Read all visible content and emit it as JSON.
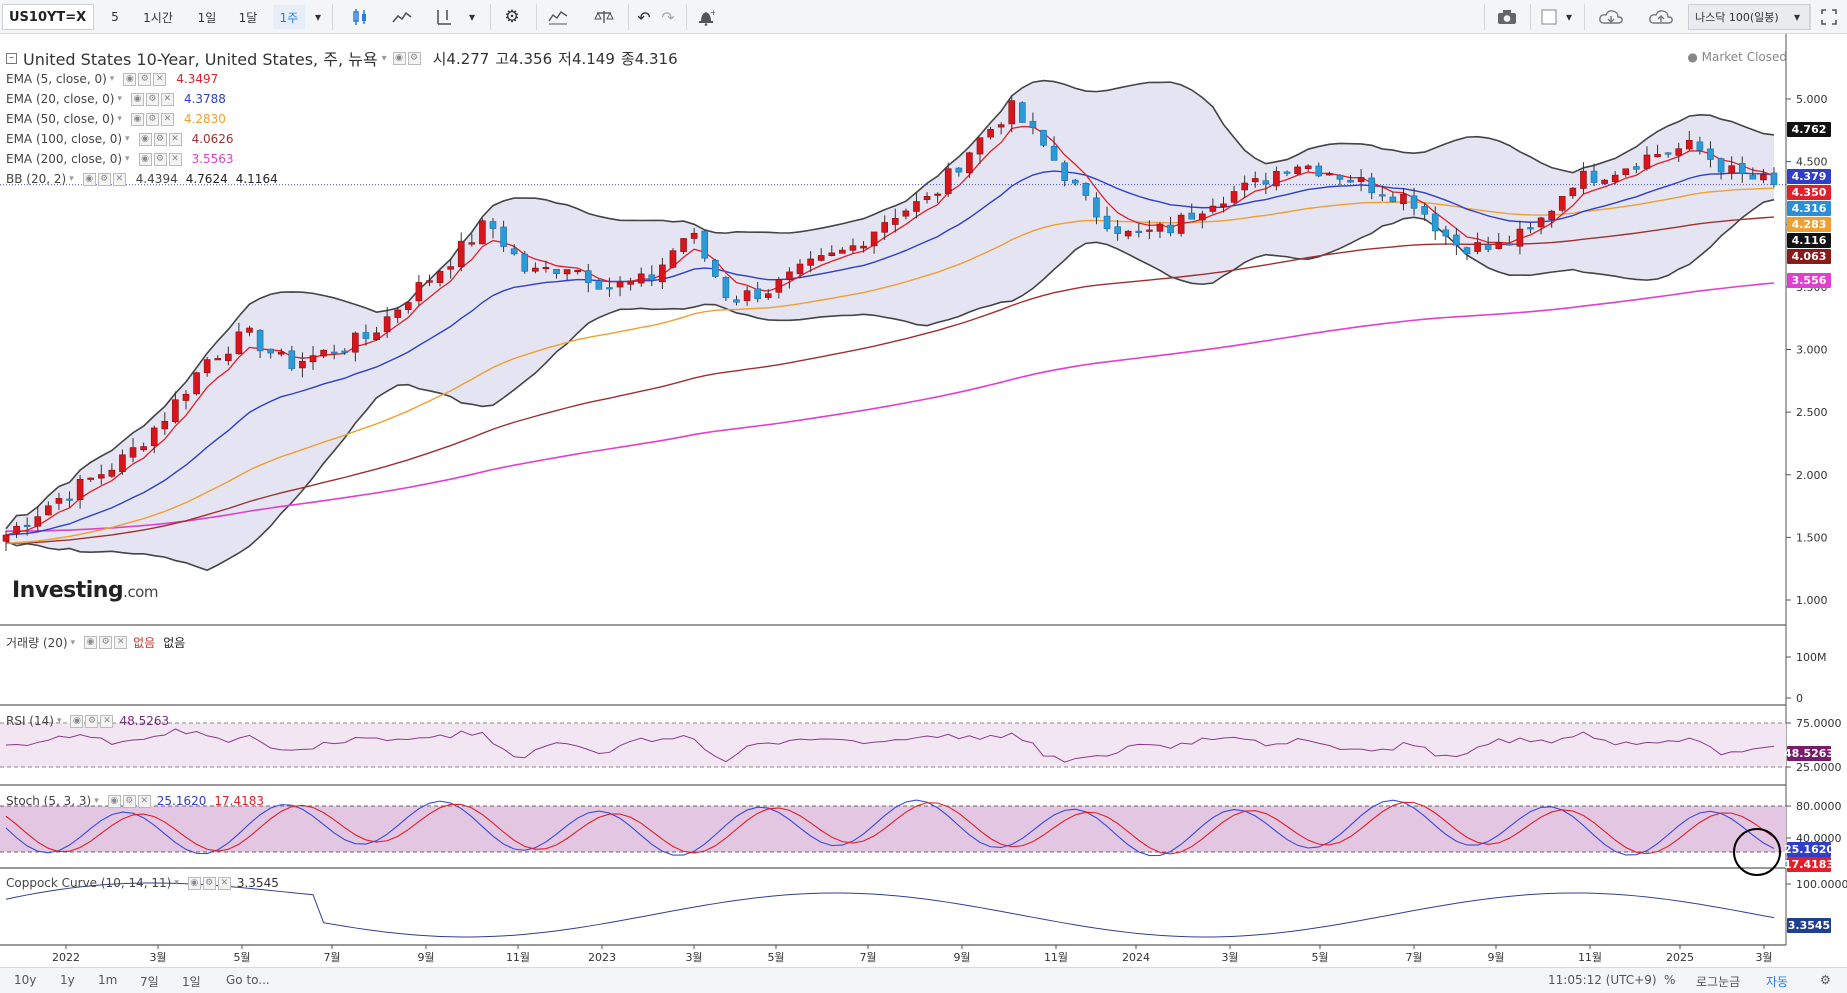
{
  "toolbar": {
    "symbol": "US10YT=X",
    "intervals": [
      "5",
      "1시간",
      "1일",
      "1달",
      "1주"
    ],
    "active_interval": "1주",
    "compare_label": "나스닥 100(일봉)"
  },
  "header": {
    "title": "United States 10-Year, United States, 주, 뉴욕",
    "open_label": "시",
    "open": "4.277",
    "high_label": "고",
    "high": "4.356",
    "low_label": "저",
    "low": "4.149",
    "close_label": "종",
    "close": "4.316",
    "market_status": "Market Closed"
  },
  "indicators": [
    {
      "label": "EMA (5, close, 0)",
      "value": "4.3497",
      "color": "#e0202a"
    },
    {
      "label": "EMA (20, close, 0)",
      "value": "4.3788",
      "color": "#2f3fc8"
    },
    {
      "label": "EMA (50, close, 0)",
      "value": "4.2830",
      "color": "#f0a030"
    },
    {
      "label": "EMA (100, close, 0)",
      "value": "4.0626",
      "color": "#a03030"
    },
    {
      "label": "EMA (200, close, 0)",
      "value": "3.5563",
      "color": "#e040d0"
    },
    {
      "label": "BB (20, 2)",
      "value": "4.4394",
      "value2": "4.7624",
      "value3": "4.1164",
      "color": "#444444"
    }
  ],
  "panes": {
    "volume": {
      "label": "거래량 (20)",
      "v1": "없음",
      "v2": "없음",
      "axis": [
        "100M",
        "0"
      ]
    },
    "rsi": {
      "label": "RSI (14)",
      "value": "48.5263",
      "axis": [
        "75.0000",
        "25.0000"
      ],
      "tag": "48.5263"
    },
    "stoch": {
      "label": "Stoch (5, 3, 3)",
      "k": "25.1620",
      "d": "17.4183",
      "axis": [
        "80.0000",
        "40.0000"
      ],
      "tag_k": "25.1620",
      "tag_d": "17.4183"
    },
    "coppock": {
      "label": "Coppock Curve (10, 14, 11)",
      "value": "3.3545",
      "axis": [
        "100.0000"
      ],
      "tag": "3.3545"
    }
  },
  "price_axis": [
    "5.000",
    "4.500",
    "4.000",
    "3.500",
    "3.000",
    "2.500",
    "2.000",
    "1.500",
    "1.000"
  ],
  "price_tags": [
    {
      "text": "4.762",
      "color": "#111111"
    },
    {
      "text": "4.379",
      "color": "#2f3fc8"
    },
    {
      "text": "4.350",
      "color": "#e0202a"
    },
    {
      "text": "4.316",
      "color": "#2a8fd8"
    },
    {
      "text": "4.283",
      "color": "#f0a030"
    },
    {
      "text": "4.116",
      "color": "#111111"
    },
    {
      "text": "4.063",
      "color": "#8b1a1a"
    },
    {
      "text": "3.556",
      "color": "#e040d0"
    }
  ],
  "time_axis": [
    "2022",
    "3월",
    "5월",
    "7월",
    "9월",
    "11월",
    "2023",
    "3월",
    "5월",
    "7월",
    "9월",
    "11월",
    "2024",
    "3월",
    "5월",
    "7월",
    "9월",
    "11월",
    "2025",
    "3월"
  ],
  "watermark": {
    "brand": "Investing",
    "suffix": ".com"
  },
  "bottom": {
    "ranges": [
      "10y",
      "1y",
      "1m",
      "7일",
      "1일",
      "Go to..."
    ],
    "clock": "11:05:12 (UTC+9)",
    "percent": "%",
    "log": "로그눈금",
    "auto": "자동"
  },
  "chart_data": {
    "type": "candlestick",
    "title": "United States 10-Year, United States, 주, 뉴욕",
    "ylim": [
      1.0,
      5.0
    ],
    "x_range": [
      "2022",
      "2025-03"
    ],
    "series": [
      {
        "name": "EMA (20, close, 0)",
        "value": 4.3788
      },
      {
        "name": "EMA (50, close, 0)",
        "value": 4.283
      },
      {
        "name": "EMA (100, close, 0)",
        "value": 4.0626
      },
      {
        "name": "EMA (200, close, 0)",
        "value": 3.5563
      }
    ],
    "anchors_close": [
      1.52,
      1.75,
      1.94,
      2.14,
      2.48,
      2.92,
      3.12,
      2.88,
      2.98,
      3.1,
      3.42,
      3.7,
      4.02,
      3.6,
      3.68,
      3.5,
      3.55,
      3.95,
      3.4,
      3.48,
      3.66,
      3.8,
      4.07,
      4.2,
      4.6,
      4.93,
      4.55,
      4.12,
      3.9,
      3.97,
      4.2,
      4.3,
      4.5,
      4.42,
      4.3,
      4.2,
      3.85,
      3.8,
      3.95,
      4.35,
      4.43,
      4.56,
      4.62,
      4.4,
      4.316
    ]
  }
}
